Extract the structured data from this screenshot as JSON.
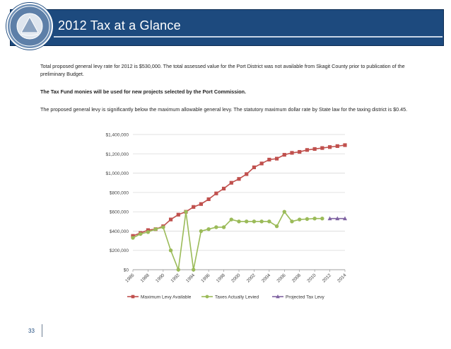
{
  "slide": {
    "title": "2012 Tax at a Glance",
    "logo_text_top": "PORT OF ANACORTES",
    "logo_text_bottom": "Est. 1926",
    "para1": "Total proposed general levy rate for 2012 is $530,000.  The total assessed value for the Port District was not available from Skagit County prior to publication of the preliminary Budget.",
    "para2": "The Tax Fund monies will be used for new projects selected by the Port Commission.",
    "para3": "The proposed general levy is significantly below the maximum allowable general levy. The statutory maximum dollar rate by State law for the taxing district is $0.45.",
    "page_number": "33"
  },
  "colors": {
    "header": "#1d4a7e",
    "max_levy": "#c0504d",
    "taxes_levied": "#9bbb59",
    "projected": "#8064a2",
    "gridline": "#d9d9d9"
  },
  "chart_data": {
    "type": "line",
    "x_tick_labels": [
      "1986",
      "1988",
      "1990",
      "1992",
      "1994",
      "1996",
      "1998",
      "2000",
      "2002",
      "2004",
      "2006",
      "2008",
      "2010",
      "2012",
      "2014"
    ],
    "y_tick_labels": [
      "$0",
      "$200,000",
      "$400,000",
      "$600,000",
      "$800,000",
      "$1,000,000",
      "$1,200,000",
      "$1,400,000"
    ],
    "ylim": [
      0,
      1400000
    ],
    "xlim": [
      1986,
      2014
    ],
    "grid": true,
    "legend_position": "bottom",
    "series": [
      {
        "name": "Maximum Levy Available",
        "marker": "square",
        "color": "#c0504d",
        "x": [
          1986,
          1987,
          1988,
          1989,
          1990,
          1991,
          1992,
          1993,
          1994,
          1995,
          1996,
          1997,
          1998,
          1999,
          2000,
          2001,
          2002,
          2003,
          2004,
          2005,
          2006,
          2007,
          2008,
          2009,
          2010,
          2011,
          2012,
          2013,
          2014
        ],
        "y": [
          350000,
          380000,
          410000,
          420000,
          450000,
          520000,
          570000,
          600000,
          650000,
          680000,
          730000,
          790000,
          840000,
          900000,
          940000,
          990000,
          1060000,
          1100000,
          1140000,
          1150000,
          1190000,
          1210000,
          1220000,
          1240000,
          1250000,
          1260000,
          1270000,
          1280000,
          1290000
        ]
      },
      {
        "name": "Taxes Actually Levied",
        "marker": "circle",
        "color": "#9bbb59",
        "x": [
          1986,
          1987,
          1988,
          1989,
          1990,
          1991,
          1992,
          1993,
          1994,
          1995,
          1996,
          1997,
          1998,
          1999,
          2000,
          2001,
          2002,
          2003,
          2004,
          2005,
          2006,
          2007,
          2008,
          2009,
          2010,
          2011
        ],
        "y": [
          330000,
          370000,
          390000,
          420000,
          440000,
          200000,
          0,
          600000,
          0,
          400000,
          420000,
          440000,
          440000,
          520000,
          500000,
          500000,
          500000,
          500000,
          500000,
          450000,
          600000,
          500000,
          520000,
          525000,
          530000,
          530000
        ]
      },
      {
        "name": "Projected Tax Levy",
        "marker": "triangle",
        "color": "#8064a2",
        "x": [
          2012,
          2013,
          2014
        ],
        "y": [
          530000,
          530000,
          530000
        ]
      }
    ]
  }
}
